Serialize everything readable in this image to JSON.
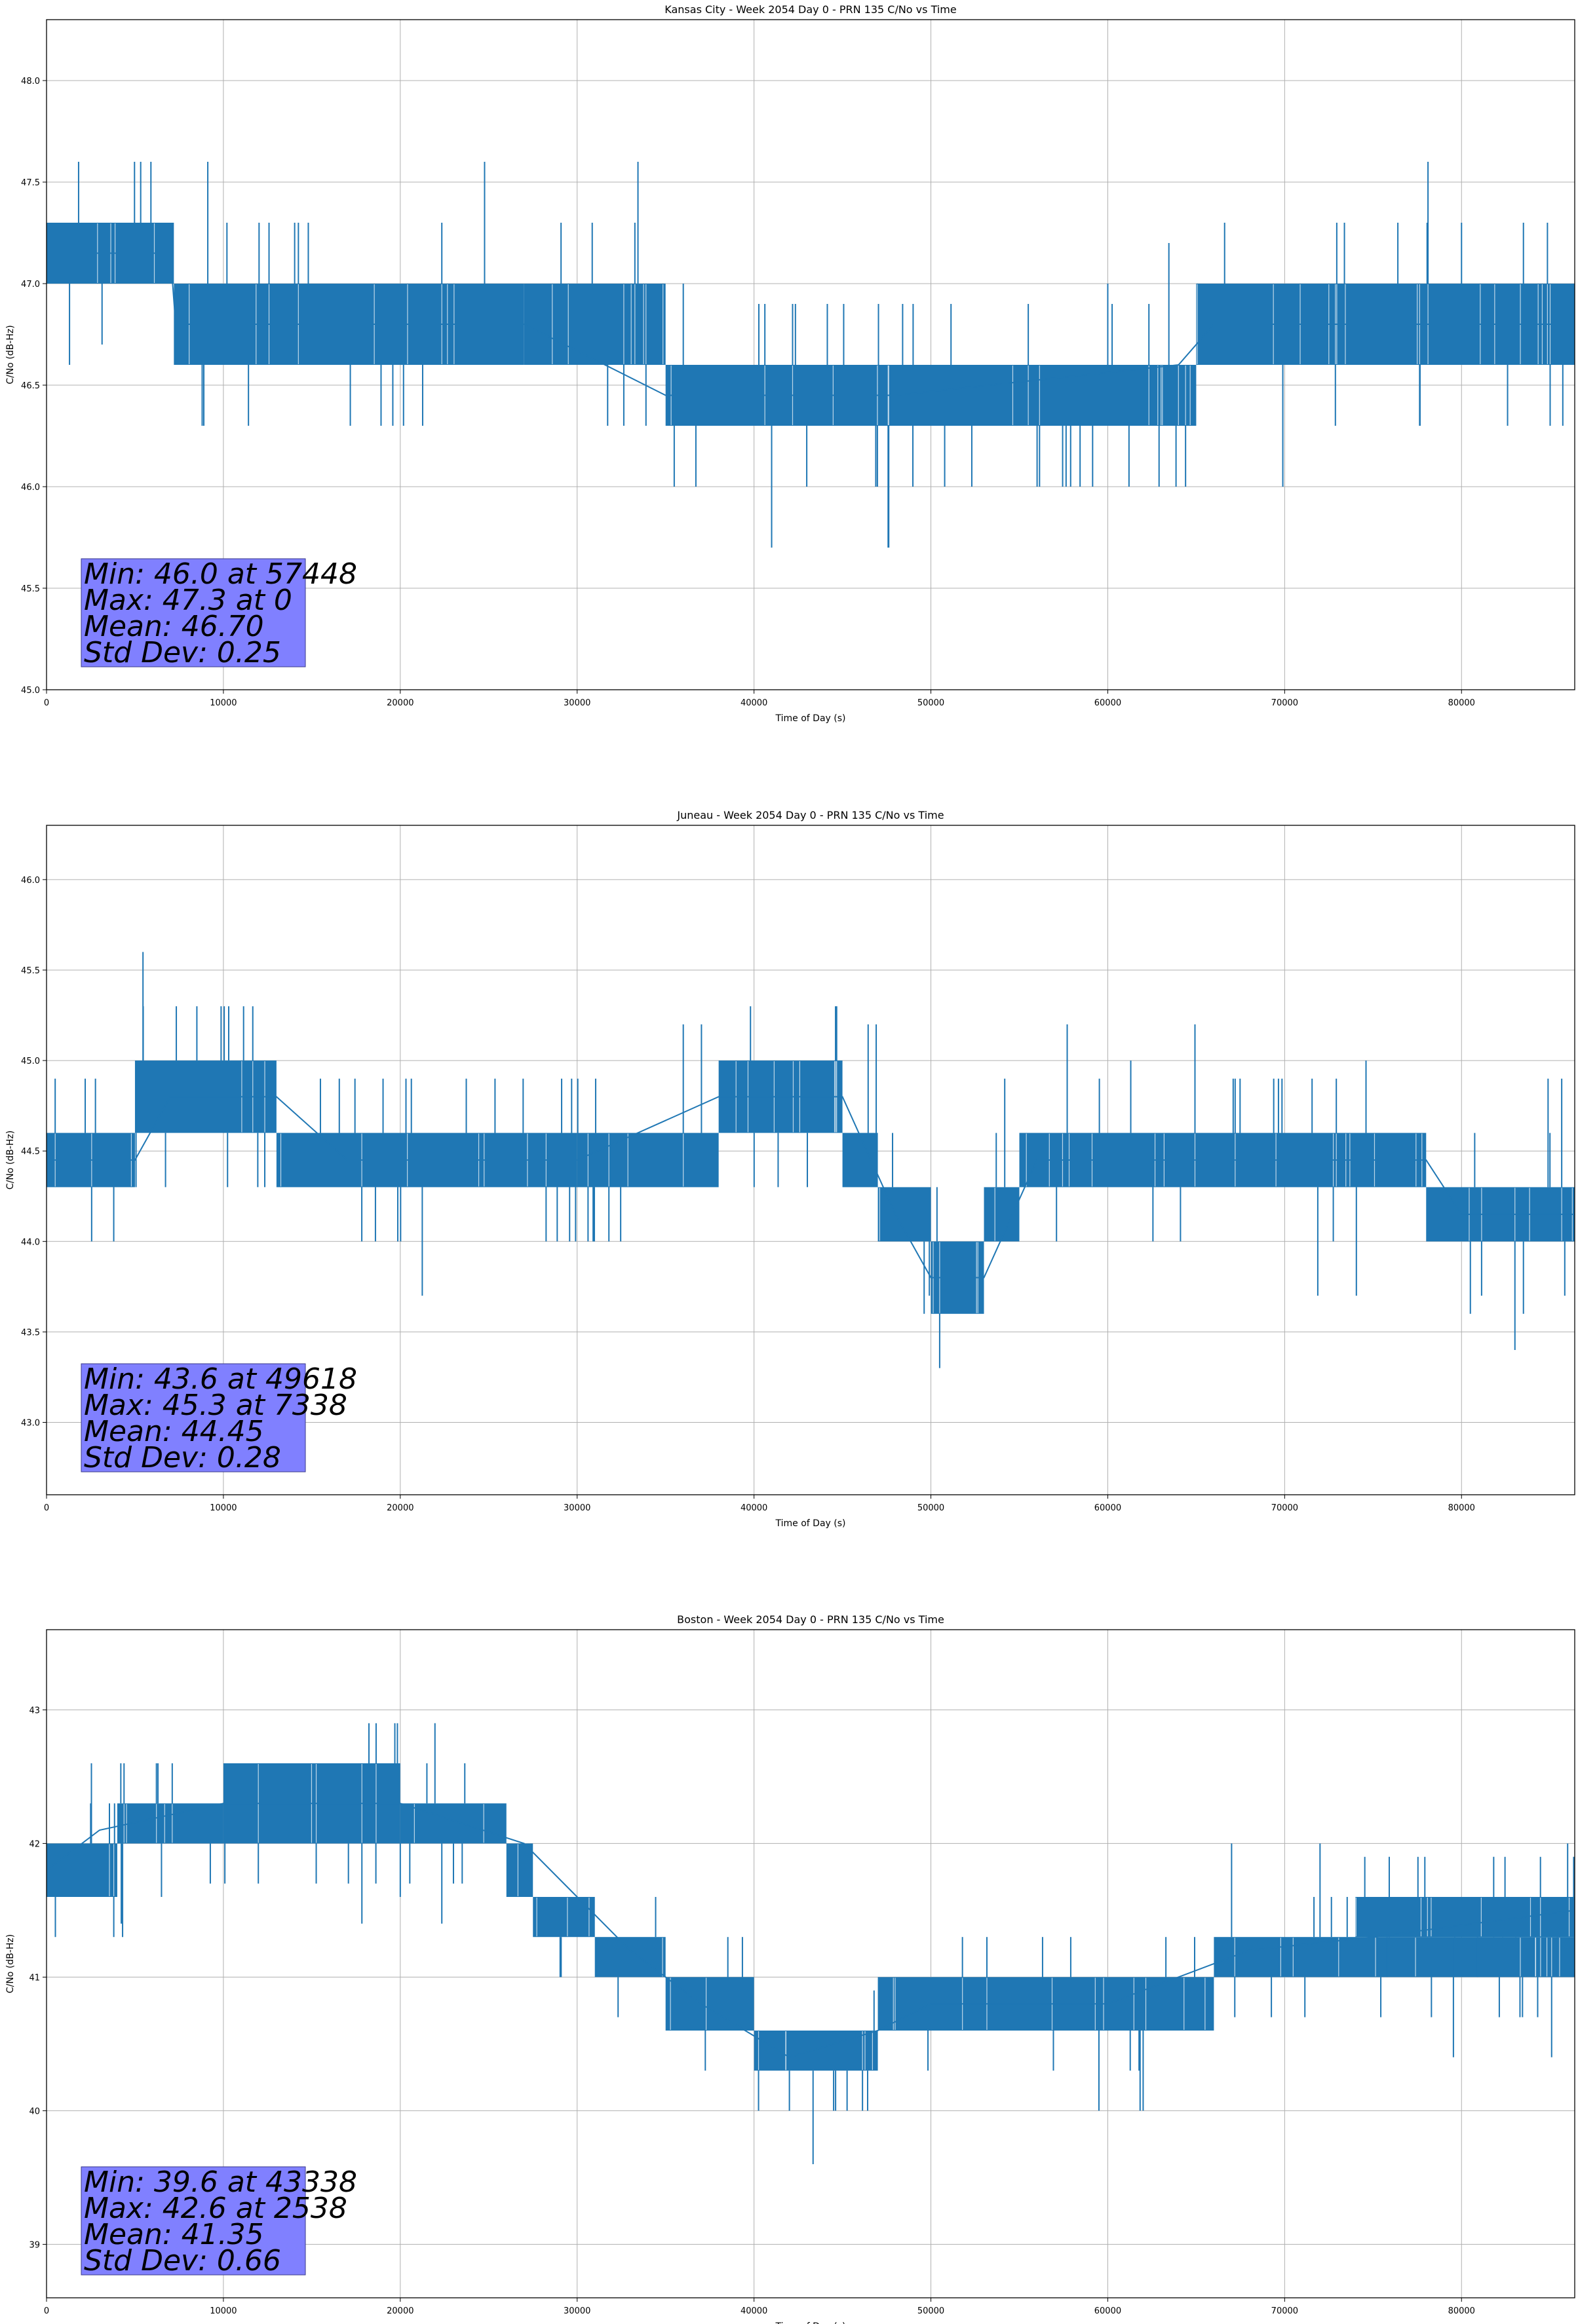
{
  "chart_data": [
    {
      "type": "line",
      "title": "Kansas City - Week 2054 Day 0 - PRN 135 C/No vs Time",
      "xlabel": "Time of Day (s)",
      "ylabel": "C/No (dB-Hz)",
      "xlim": [
        0,
        86400
      ],
      "ylim": [
        45.0,
        48.3
      ],
      "xticks": [
        0,
        10000,
        20000,
        30000,
        40000,
        50000,
        60000,
        70000,
        80000
      ],
      "yticks": [
        45.0,
        45.5,
        46.0,
        46.5,
        47.0,
        47.5,
        48.0
      ],
      "ytick_labels": [
        "45.0",
        "45.5",
        "46.0",
        "46.5",
        "47.0",
        "47.5",
        "48.0"
      ],
      "grid": true,
      "color": "#1f77b4",
      "series": [
        {
          "x": [
            0,
            7000,
            7300,
            25000,
            27000,
            35000,
            46000,
            48000,
            64000,
            66000,
            86400
          ],
          "y": [
            47.15,
            47.15,
            46.8,
            46.8,
            46.8,
            46.45,
            46.45,
            46.45,
            46.6,
            46.8,
            46.8
          ]
        }
      ],
      "bands": [
        {
          "x0": 0,
          "x1": 7200,
          "lo": 47.0,
          "hi": 47.3
        },
        {
          "x0": 7200,
          "x1": 27000,
          "lo": 46.6,
          "hi": 47.0
        },
        {
          "x0": 27000,
          "x1": 35000,
          "lo": 46.6,
          "hi": 47.0
        },
        {
          "x0": 35000,
          "x1": 47000,
          "lo": 46.3,
          "hi": 46.6
        },
        {
          "x0": 47000,
          "x1": 65000,
          "lo": 46.3,
          "hi": 46.6
        },
        {
          "x0": 65000,
          "x1": 86400,
          "lo": 46.6,
          "hi": 47.0
        }
      ],
      "spikes": [
        {
          "x": 8800,
          "y": 46.3
        },
        {
          "x": 10200,
          "y": 47.3
        },
        {
          "x": 14800,
          "y": 47.3
        },
        {
          "x": 57448,
          "y": 46.0
        },
        {
          "x": 57900,
          "y": 46.0
        },
        {
          "x": 61200,
          "y": 46.0
        },
        {
          "x": 36000,
          "y": 47.0
        },
        {
          "x": 60000,
          "y": 47.0
        },
        {
          "x": 76400,
          "y": 47.3
        },
        {
          "x": 80000,
          "y": 47.3
        },
        {
          "x": 83500,
          "y": 47.3
        },
        {
          "x": 1300,
          "y": 46.6
        }
      ],
      "stats": [
        "Min: 46.0 at 57448",
        "Max: 47.3 at 0",
        "Mean: 46.70",
        "Std Dev: 0.25"
      ]
    },
    {
      "type": "line",
      "title": "Juneau - Week 2054 Day 0 - PRN 135 C/No vs Time",
      "xlabel": "Time of Day (s)",
      "ylabel": "C/No (dB-Hz)",
      "xlim": [
        0,
        86400
      ],
      "ylim": [
        42.6,
        46.3
      ],
      "xticks": [
        0,
        10000,
        20000,
        30000,
        40000,
        50000,
        60000,
        70000,
        80000
      ],
      "yticks": [
        43.0,
        43.5,
        44.0,
        44.5,
        45.0,
        45.5,
        46.0
      ],
      "ytick_labels": [
        "43.0",
        "43.5",
        "44.0",
        "44.5",
        "45.0",
        "45.5",
        "46.0"
      ],
      "grid": true,
      "color": "#1f77b4",
      "series": [
        {
          "x": [
            0,
            5000,
            7000,
            13000,
            17000,
            24000,
            30000,
            38000,
            45000,
            48000,
            50000,
            53000,
            56000,
            78000,
            80000,
            86400
          ],
          "y": [
            44.45,
            44.45,
            44.8,
            44.8,
            44.45,
            44.45,
            44.45,
            44.8,
            44.8,
            44.15,
            43.8,
            43.8,
            44.45,
            44.45,
            44.15,
            44.15
          ]
        }
      ],
      "bands": [
        {
          "x0": 0,
          "x1": 5000,
          "lo": 44.3,
          "hi": 44.6
        },
        {
          "x0": 5000,
          "x1": 13000,
          "lo": 44.6,
          "hi": 45.0
        },
        {
          "x0": 13000,
          "x1": 30000,
          "lo": 44.3,
          "hi": 44.6
        },
        {
          "x0": 30000,
          "x1": 38000,
          "lo": 44.3,
          "hi": 44.6
        },
        {
          "x0": 38000,
          "x1": 45000,
          "lo": 44.6,
          "hi": 45.0
        },
        {
          "x0": 45000,
          "x1": 47000,
          "lo": 44.3,
          "hi": 44.6
        },
        {
          "x0": 47000,
          "x1": 50000,
          "lo": 44.0,
          "hi": 44.3
        },
        {
          "x0": 50000,
          "x1": 53000,
          "lo": 43.6,
          "hi": 44.0
        },
        {
          "x0": 53000,
          "x1": 55000,
          "lo": 44.0,
          "hi": 44.3
        },
        {
          "x0": 55000,
          "x1": 78000,
          "lo": 44.3,
          "hi": 44.6
        },
        {
          "x0": 78000,
          "x1": 86400,
          "lo": 44.0,
          "hi": 44.3
        }
      ],
      "spikes": [
        {
          "x": 7338,
          "y": 45.3
        },
        {
          "x": 8500,
          "y": 45.3
        },
        {
          "x": 10300,
          "y": 45.3
        },
        {
          "x": 39800,
          "y": 45.3
        },
        {
          "x": 3800,
          "y": 44.0
        },
        {
          "x": 49618,
          "y": 43.6
        },
        {
          "x": 80500,
          "y": 43.6
        },
        {
          "x": 83500,
          "y": 43.6
        },
        {
          "x": 61300,
          "y": 45.0
        },
        {
          "x": 74600,
          "y": 45.0
        },
        {
          "x": 85000,
          "y": 44.6
        }
      ],
      "stats": [
        "Min: 43.6 at 49618",
        "Max: 45.3 at 7338",
        "Mean: 44.45",
        "Std Dev: 0.28"
      ]
    },
    {
      "type": "line",
      "title": "Boston - Week 2054 Day 0 - PRN 135 C/No vs Time",
      "xlabel": "Time of Day (s)",
      "ylabel": "C/No (dB-Hz)",
      "xlim": [
        0,
        86400
      ],
      "ylim": [
        38.6,
        43.6
      ],
      "xticks": [
        0,
        10000,
        20000,
        30000,
        40000,
        50000,
        60000,
        70000,
        80000
      ],
      "yticks": [
        39,
        40,
        41,
        42,
        43
      ],
      "ytick_labels": [
        "39",
        "40",
        "41",
        "42",
        "43"
      ],
      "grid": true,
      "color": "#1f77b4",
      "series": [
        {
          "x": [
            0,
            3000,
            10000,
            20000,
            27000,
            30000,
            33000,
            37000,
            42000,
            47000,
            50000,
            60000,
            68000,
            75000,
            86400
          ],
          "y": [
            41.8,
            42.1,
            42.3,
            42.3,
            42.0,
            41.6,
            41.2,
            40.8,
            40.4,
            40.6,
            40.8,
            40.8,
            41.2,
            41.3,
            41.5
          ]
        }
      ],
      "bands": [
        {
          "x0": 0,
          "x1": 4000,
          "lo": 41.6,
          "hi": 42.0
        },
        {
          "x0": 4000,
          "x1": 10000,
          "lo": 42.0,
          "hi": 42.3
        },
        {
          "x0": 10000,
          "x1": 20000,
          "lo": 42.0,
          "hi": 42.6
        },
        {
          "x0": 20000,
          "x1": 26000,
          "lo": 42.0,
          "hi": 42.3
        },
        {
          "x0": 26000,
          "x1": 27500,
          "lo": 41.6,
          "hi": 42.0
        },
        {
          "x0": 27500,
          "x1": 31000,
          "lo": 41.3,
          "hi": 41.6
        },
        {
          "x0": 31000,
          "x1": 35000,
          "lo": 41.0,
          "hi": 41.3
        },
        {
          "x0": 35000,
          "x1": 40000,
          "lo": 40.6,
          "hi": 41.0
        },
        {
          "x0": 40000,
          "x1": 47000,
          "lo": 40.3,
          "hi": 40.6
        },
        {
          "x0": 47000,
          "x1": 66000,
          "lo": 40.6,
          "hi": 41.0
        },
        {
          "x0": 66000,
          "x1": 86400,
          "lo": 41.0,
          "hi": 41.3
        },
        {
          "x0": 74000,
          "x1": 86400,
          "lo": 41.3,
          "hi": 41.6
        }
      ],
      "spikes": [
        {
          "x": 43338,
          "y": 39.6
        },
        {
          "x": 42000,
          "y": 40.0
        },
        {
          "x": 44500,
          "y": 40.0
        },
        {
          "x": 2538,
          "y": 42.6
        },
        {
          "x": 4200,
          "y": 42.6
        },
        {
          "x": 500,
          "y": 41.3
        },
        {
          "x": 4300,
          "y": 41.3
        },
        {
          "x": 6500,
          "y": 41.6
        },
        {
          "x": 20000,
          "y": 41.6
        },
        {
          "x": 67000,
          "y": 42.0
        },
        {
          "x": 72000,
          "y": 42.0
        },
        {
          "x": 86000,
          "y": 42.0
        },
        {
          "x": 59500,
          "y": 40.0
        },
        {
          "x": 62000,
          "y": 40.0
        }
      ],
      "stats": [
        "Min: 39.6 at 43338",
        "Max: 42.6 at 2538",
        "Mean: 41.35",
        "Std Dev: 0.66"
      ]
    }
  ]
}
